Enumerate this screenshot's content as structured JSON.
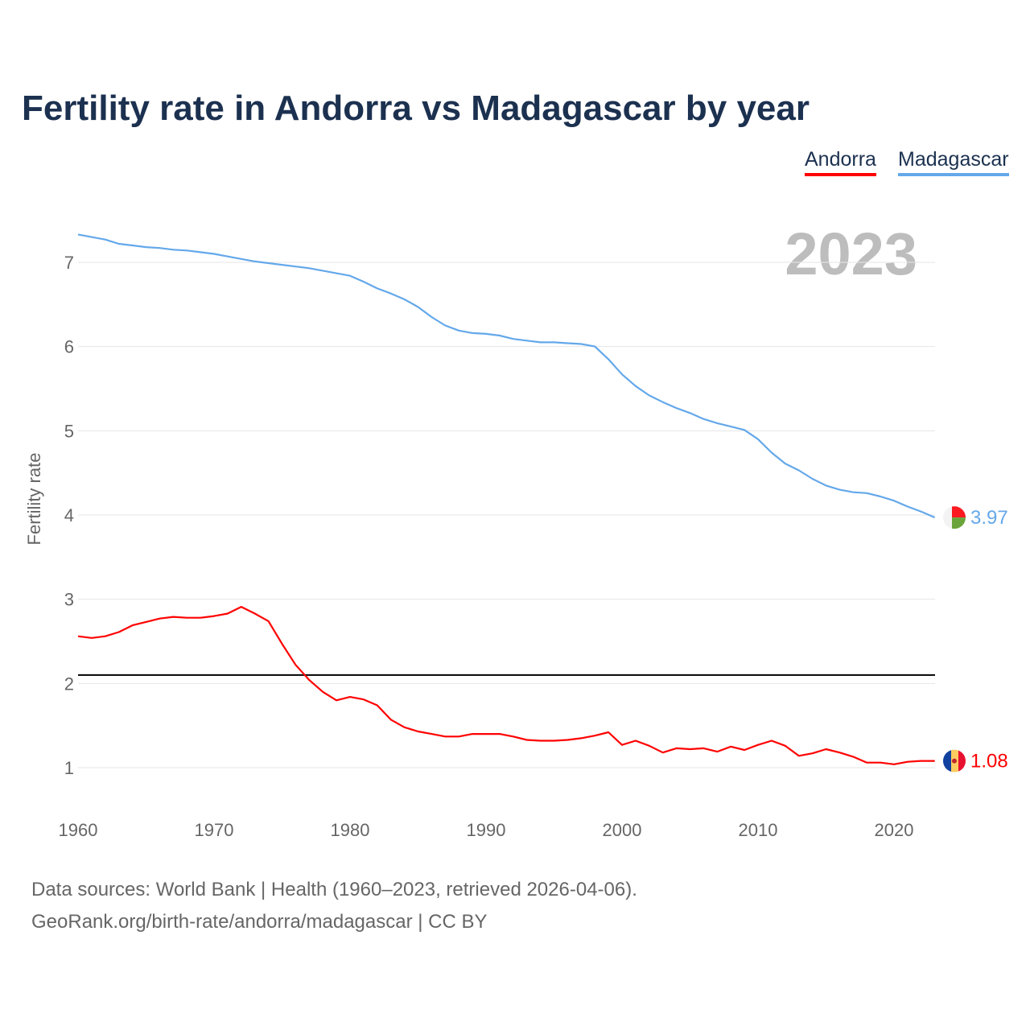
{
  "chart_data": {
    "type": "line",
    "title": "Fertility rate in Andorra vs Madagascar by year",
    "ylabel": "Fertility rate",
    "xlabel": "",
    "year_label": "2023",
    "xlim": [
      1960,
      2023
    ],
    "ylim": [
      0.5,
      7.6
    ],
    "x_ticks": [
      "1960",
      "1970",
      "1980",
      "1990",
      "2000",
      "2010",
      "2020"
    ],
    "y_ticks": [
      "1",
      "2",
      "3",
      "4",
      "5",
      "6",
      "7"
    ],
    "reference_line": 2.1,
    "x_start": 1960,
    "series": [
      {
        "name": "Andorra",
        "color": "#ff0000",
        "end_label": "1.08",
        "values": [
          2.56,
          2.54,
          2.56,
          2.61,
          2.69,
          2.73,
          2.77,
          2.79,
          2.78,
          2.78,
          2.8,
          2.83,
          2.91,
          2.83,
          2.74,
          2.47,
          2.22,
          2.04,
          1.9,
          1.8,
          1.84,
          1.81,
          1.74,
          1.57,
          1.48,
          1.43,
          1.4,
          1.37,
          1.37,
          1.4,
          1.4,
          1.4,
          1.37,
          1.33,
          1.32,
          1.32,
          1.33,
          1.35,
          1.38,
          1.42,
          1.27,
          1.32,
          1.26,
          1.18,
          1.23,
          1.22,
          1.23,
          1.19,
          1.25,
          1.21,
          1.27,
          1.32,
          1.26,
          1.14,
          1.17,
          1.22,
          1.18,
          1.13,
          1.06,
          1.06,
          1.04,
          1.07,
          1.08,
          1.08
        ]
      },
      {
        "name": "Madagascar",
        "color": "#64a8ea",
        "end_label": "3.97",
        "values": [
          7.33,
          7.3,
          7.27,
          7.22,
          7.2,
          7.18,
          7.17,
          7.15,
          7.14,
          7.12,
          7.1,
          7.07,
          7.04,
          7.01,
          6.99,
          6.97,
          6.95,
          6.93,
          6.9,
          6.87,
          6.84,
          6.77,
          6.69,
          6.63,
          6.56,
          6.47,
          6.35,
          6.25,
          6.19,
          6.16,
          6.15,
          6.13,
          6.09,
          6.07,
          6.05,
          6.05,
          6.04,
          6.03,
          6.0,
          5.85,
          5.67,
          5.53,
          5.42,
          5.34,
          5.27,
          5.21,
          5.14,
          5.09,
          5.05,
          5.01,
          4.9,
          4.74,
          4.61,
          4.53,
          4.43,
          4.35,
          4.3,
          4.27,
          4.26,
          4.22,
          4.17,
          4.1,
          4.04,
          3.97
        ]
      }
    ]
  },
  "footer": {
    "line1": "Data sources: World Bank | Health (1960–2023, retrieved 2026-04-06).",
    "line2": "GeoRank.org/birth-rate/andorra/madagascar | CC BY"
  }
}
